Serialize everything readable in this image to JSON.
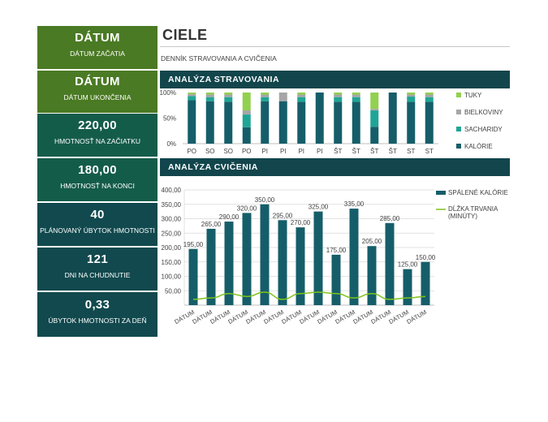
{
  "tiles": [
    {
      "value": "DÁTUM",
      "label": "DÁTUM ZAČATIA"
    },
    {
      "value": "DÁTUM",
      "label": "DÁTUM UKONČENIA"
    },
    {
      "value": "220,00",
      "label": "HMOTNOSŤ NA ZAČIATKU"
    },
    {
      "value": "180,00",
      "label": "HMOTNOSŤ NA KONCI"
    },
    {
      "value": "40",
      "label": "PLÁNOVANÝ ÚBYTOK HMOTNOSTI"
    },
    {
      "value": "121",
      "label": "DNI NA CHUDNUTIE"
    },
    {
      "value": "0,33",
      "label": "ÚBYTOK HMOTNOSTI ZA DEŇ"
    }
  ],
  "header": {
    "title": "CIELE",
    "subtitle": "DENNÍK STRAVOVANIA A CVIČENIA"
  },
  "sections": {
    "diet": "ANALÝZA STRAVOVANIA",
    "exercise": "ANALÝZA CVIČENIA"
  },
  "colors": {
    "green": "#4a7a23",
    "teal": "#145c4a",
    "dark_teal": "#11494e",
    "band": "#12464c",
    "tuky": "#92d050",
    "bielkoviny": "#a6a6a6",
    "sacharidy": "#1fa596",
    "kalorie": "#155e69",
    "line": "#7fc31c"
  },
  "chart_data": [
    {
      "type": "bar",
      "stacked": "percent",
      "categories": [
        "PO",
        "SO",
        "SO",
        "PO",
        "PI",
        "PI",
        "PI",
        "PI",
        "ŠT",
        "ŠT",
        "ŠT",
        "ŠT",
        "ST",
        "ST"
      ],
      "series": [
        {
          "name": "KALÓRIE",
          "values": [
            85,
            83,
            82,
            32,
            83,
            83,
            82,
            100,
            82,
            82,
            33,
            100,
            82,
            82
          ]
        },
        {
          "name": "SACHARIDY",
          "values": [
            8,
            8,
            9,
            25,
            8,
            0,
            9,
            0,
            9,
            9,
            32,
            0,
            10,
            9
          ]
        },
        {
          "name": "BIELKOVINY",
          "values": [
            4,
            5,
            5,
            8,
            5,
            17,
            5,
            0,
            5,
            5,
            3,
            0,
            4,
            5
          ]
        },
        {
          "name": "TUKY",
          "values": [
            3,
            4,
            4,
            35,
            4,
            0,
            4,
            0,
            4,
            4,
            32,
            0,
            4,
            4
          ]
        }
      ],
      "ytick_labels": [
        "0%",
        "50%",
        "100%"
      ],
      "ylim": [
        0,
        100
      ],
      "legend": "right"
    },
    {
      "type": "bar",
      "categories": [
        "DÁTUM",
        "DÁTUM",
        "DÁTUM",
        "DÁTUM",
        "DÁTUM",
        "DÁTUM",
        "DÁTUM",
        "DÁTUM",
        "DÁTUM",
        "DÁTUM",
        "DÁTUM",
        "DÁTUM",
        "DÁTUM",
        "DÁTUM"
      ],
      "series": [
        {
          "name": "SPÁLENÉ KALÓRIE",
          "kind": "bar",
          "values": [
            195,
            265,
            290,
            320,
            350,
            295,
            270,
            325,
            175,
            335,
            205,
            285,
            125,
            150
          ],
          "data_labels": [
            "195,00",
            "265,00",
            "290,00",
            "320,00",
            "350,00",
            "295,00",
            "270,00",
            "325,00",
            "175,00",
            "335,00",
            "205,00",
            "285,00",
            "125,00",
            "150,00"
          ]
        },
        {
          "name": "DĹŽKA TRVANIA (MINÚTY)",
          "kind": "line",
          "values": [
            20,
            25,
            40,
            30,
            45,
            20,
            40,
            45,
            40,
            25,
            40,
            20,
            25,
            30
          ]
        }
      ],
      "ytick_labels": [
        "50,00",
        "100,00",
        "150,00",
        "200,00",
        "250,00",
        "300,00",
        "350,00",
        "400,00"
      ],
      "ylim": [
        0,
        400
      ],
      "grid": true,
      "legend": "right"
    }
  ]
}
